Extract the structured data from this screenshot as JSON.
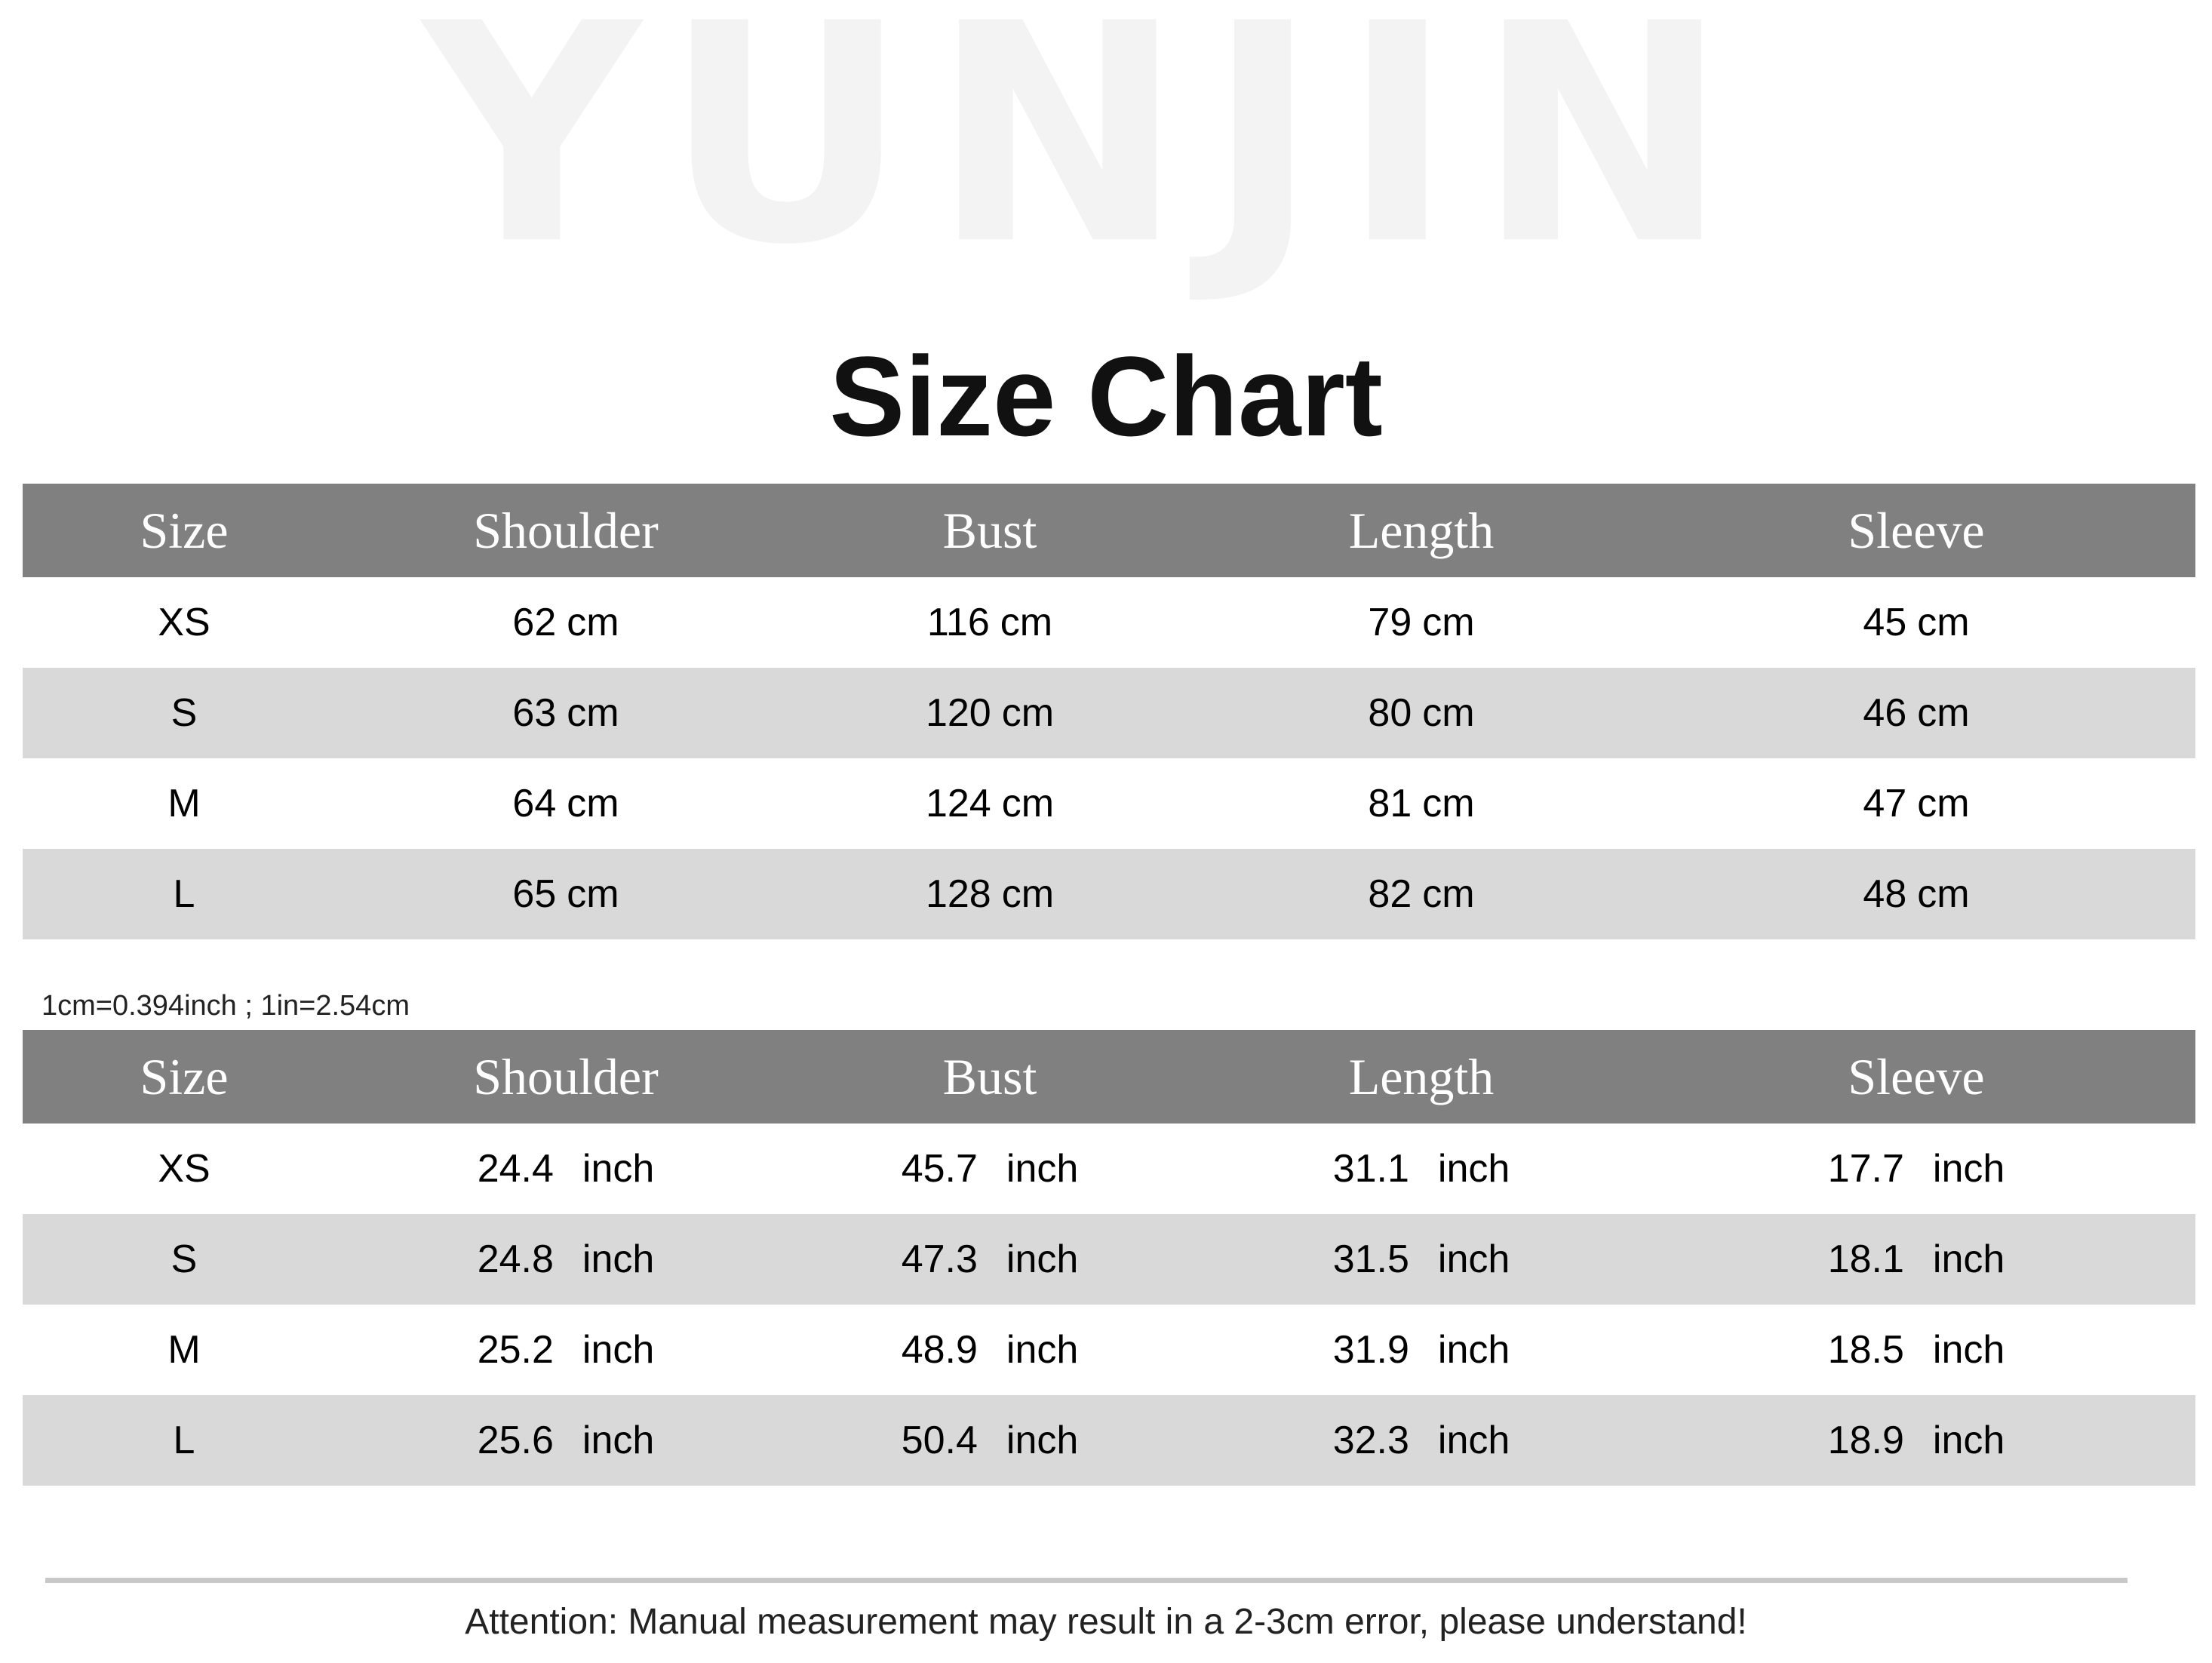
{
  "brand": {
    "watermark": "YUNJIN"
  },
  "title": "Size Chart",
  "colors": {
    "header_bg": "#808080",
    "alt_row_bg": "#d9d9d9",
    "header_text": "#ffffff"
  },
  "headers": [
    "Size",
    "Shoulder",
    "Bust",
    "Length",
    "Sleeve"
  ],
  "cm_table": {
    "unit": "cm",
    "rows": [
      {
        "size": "XS",
        "values": [
          "62",
          "116",
          "79",
          "45"
        ]
      },
      {
        "size": "S",
        "values": [
          "63",
          "120",
          "80",
          "46"
        ]
      },
      {
        "size": "M",
        "values": [
          "64",
          "124",
          "81",
          "47"
        ]
      },
      {
        "size": "L",
        "values": [
          "65",
          "128",
          "82",
          "48"
        ]
      }
    ]
  },
  "conversion_note": "1cm=0.394inch ; 1in=2.54cm",
  "inch_table": {
    "unit": "inch",
    "rows": [
      {
        "size": "XS",
        "values": [
          "24.4",
          "45.7",
          "31.1",
          "17.7"
        ]
      },
      {
        "size": "S",
        "values": [
          "24.8",
          "47.3",
          "31.5",
          "18.1"
        ]
      },
      {
        "size": "M",
        "values": [
          "25.2",
          "48.9",
          "31.9",
          "18.5"
        ]
      },
      {
        "size": "L",
        "values": [
          "25.6",
          "50.4",
          "32.3",
          "18.9"
        ]
      }
    ]
  },
  "attention": "Attention: Manual measurement may result in a 2-3cm error, please understand!"
}
